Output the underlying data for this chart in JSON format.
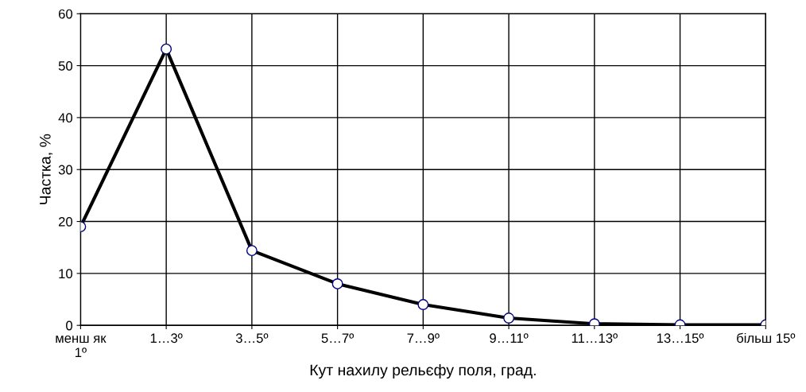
{
  "chart_data": {
    "type": "line",
    "xlabel": "Кут нахилу рельєфу поля, град.",
    "ylabel": "Частка, %",
    "categories": [
      "менш як\n1º",
      "1…3º",
      "3…5º",
      "5…7º",
      "7…9º",
      "9…11º",
      "11…13º",
      "13…15º",
      "більш 15º"
    ],
    "series": [
      {
        "color": "#000000",
        "values": [
          19.0,
          53.2,
          14.4,
          8.0,
          4.0,
          1.4,
          0.3,
          0.1,
          0.1
        ]
      }
    ],
    "ylim": [
      0,
      60
    ],
    "yticks": [
      0,
      10,
      20,
      30,
      40,
      50,
      60
    ],
    "grid": true,
    "marker": "circle",
    "line_style": "solid"
  }
}
